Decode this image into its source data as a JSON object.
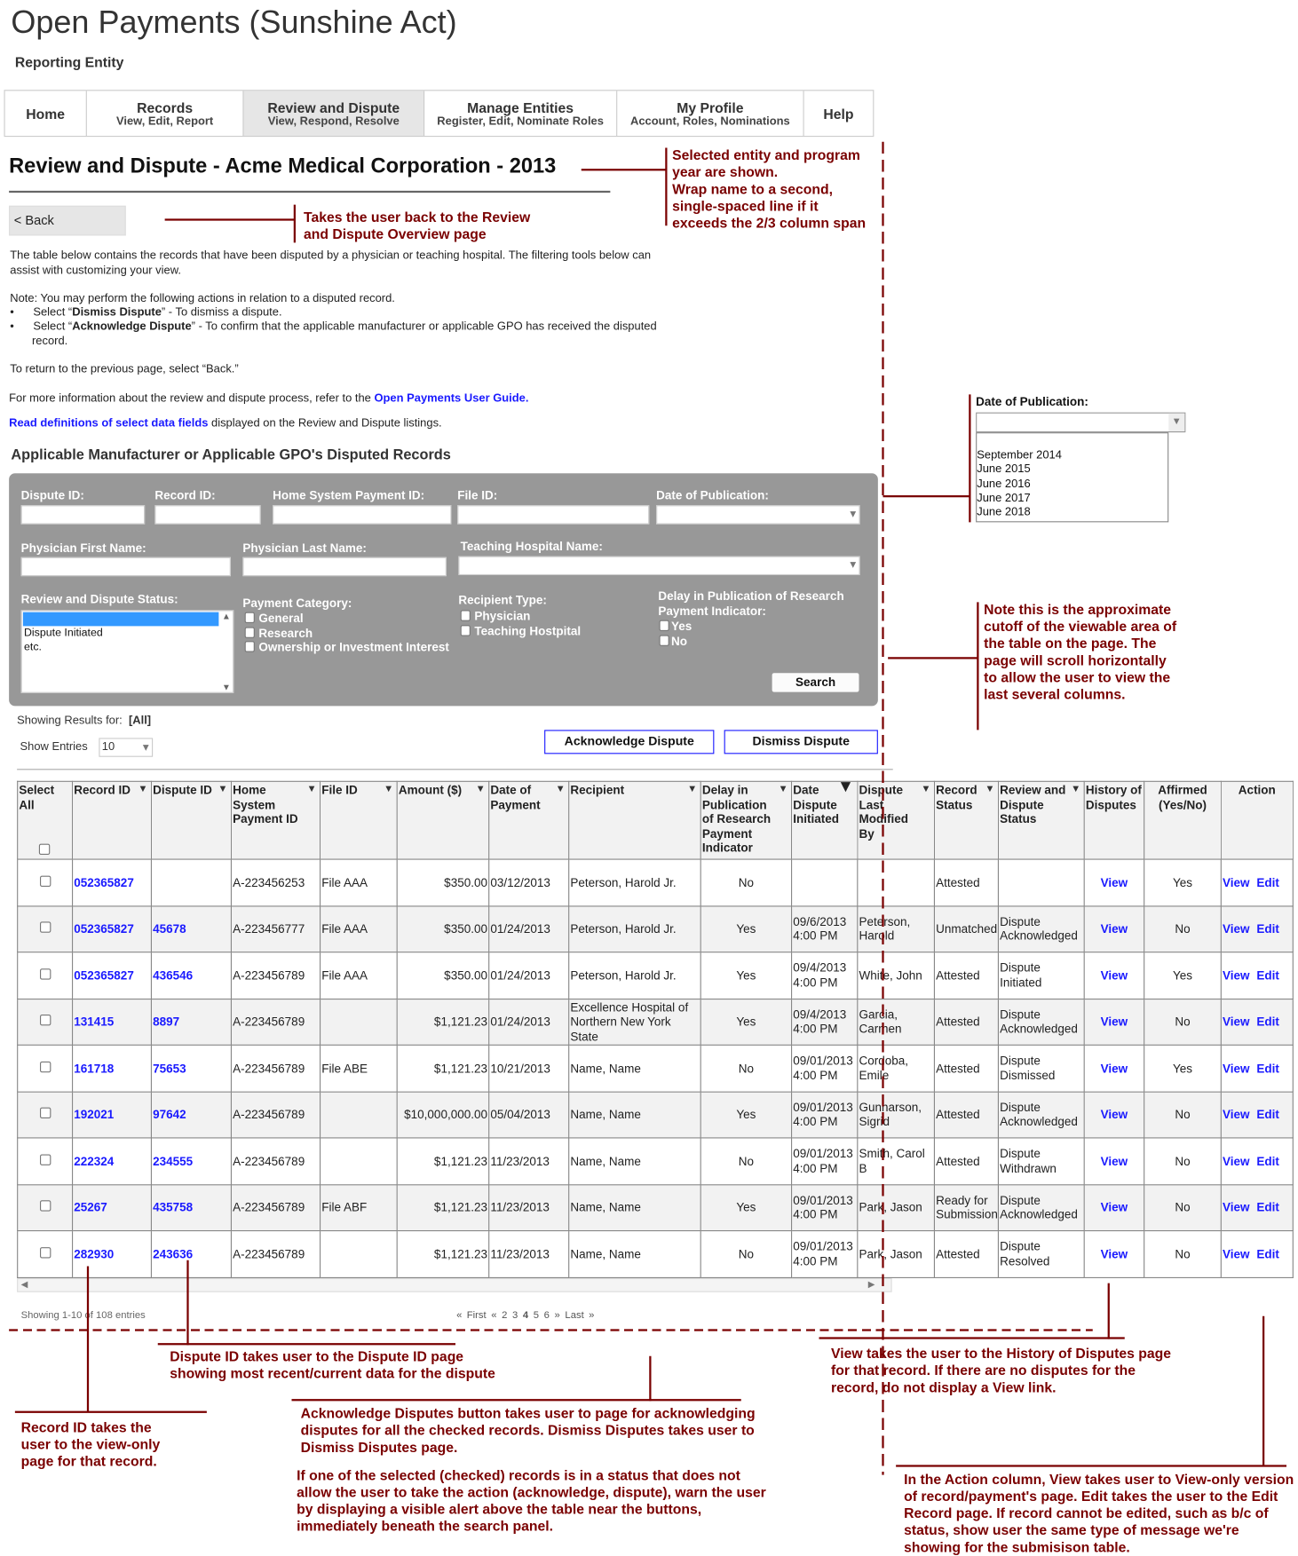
{
  "header": {
    "app_title": "Open Payments (Sunshine Act)",
    "subtitle": "Reporting Entity"
  },
  "nav": [
    {
      "label": "Home",
      "sub": ""
    },
    {
      "label": "Records",
      "sub": "View, Edit, Report"
    },
    {
      "label": "Review and Dispute",
      "sub": "View, Respond, Resolve",
      "active": true
    },
    {
      "label": "Manage Entities",
      "sub": "Register, Edit, Nominate Roles"
    },
    {
      "label": "My Profile",
      "sub": "Account, Roles, Nominations"
    },
    {
      "label": "Help",
      "sub": ""
    }
  ],
  "page": {
    "title": "Review and Dispute - Acme Medical Corporation - 2013",
    "back_label": "<  Back",
    "intro": "The table below contains the records that have been disputed by a physician or teaching hospital. The filtering tools below can assist with customizing your view.",
    "note": "Note: You may perform the following actions in relation to a disputed record.",
    "bullet1_pre": "Select “",
    "bullet1_bold": "Dismiss Dispute",
    "bullet1_post": "” -  To dismiss a dispute.",
    "bullet2_pre": "Select “",
    "bullet2_bold": "Acknowledge Dispute",
    "bullet2_post": "”  - To confirm that the applicable manufacturer or applicable GPO has received the disputed record.",
    "return_text": "To return to the previous page, select “Back.”",
    "more_info_pre": "For more information about the review and dispute process, refer to the ",
    "more_info_link": "Open Payments User Guide.",
    "definitions_link": "Read definitions of select data fields",
    "definitions_post": " displayed on the Review and Dispute listings.",
    "section_title": "Applicable Manufacturer or Applicable GPO's Disputed Records"
  },
  "filters": {
    "dispute_id": "Dispute ID:",
    "record_id": "Record ID:",
    "home_system_payment_id": "Home System Payment ID:",
    "file_id": "File ID:",
    "date_of_publication": "Date of Publication:",
    "physician_first_name": "Physician First Name:",
    "physician_last_name": "Physician Last Name:",
    "teaching_hospital_name": "Teaching Hospital Name:",
    "review_status_label": "Review and Dispute Status:",
    "review_status_options": [
      "",
      "Dispute Initiated",
      "etc."
    ],
    "payment_category_label": "Payment Category:",
    "payment_categories": [
      "General",
      "Research",
      "Ownership or Investment Interest"
    ],
    "recipient_type_label": "Recipient Type:",
    "recipient_types": [
      "Physician",
      "Teaching Hostpital"
    ],
    "delay_label": "Delay in Publication of Research Payment Indicator:",
    "delay_options": [
      "Yes",
      "No"
    ],
    "search_label": "Search"
  },
  "results": {
    "showing_label": "Showing Results for:",
    "showing_value": "[All]",
    "show_entries_label": "Show Entries",
    "show_entries_value": "10",
    "acknowledge_label": "Acknowledge Dispute",
    "dismiss_label": "Dismiss Dispute"
  },
  "table": {
    "columns": [
      {
        "label": "Select All",
        "sort": ""
      },
      {
        "label": "Record ID",
        "sort": "small"
      },
      {
        "label": "Dispute ID",
        "sort": "small"
      },
      {
        "label": "Home System Payment ID",
        "sort": "small"
      },
      {
        "label": "File ID",
        "sort": "small"
      },
      {
        "label": "Amount  ($)",
        "sort": "small"
      },
      {
        "label": "Date of Payment",
        "sort": "small"
      },
      {
        "label": "Recipient",
        "sort": "small"
      },
      {
        "label": "Delay in Publication of Research Payment Indicator",
        "sort": "small"
      },
      {
        "label": "Date Dispute Initiated",
        "sort": "large"
      },
      {
        "label": "Dispute Last Modified By",
        "sort": "small"
      },
      {
        "label": "Record Status",
        "sort": "small"
      },
      {
        "label": "Review and Dispute Status",
        "sort": "small"
      },
      {
        "label": "History of Disputes",
        "sort": ""
      },
      {
        "label": "Affirmed (Yes/No)",
        "sort": ""
      },
      {
        "label": "Action",
        "sort": ""
      }
    ],
    "rows": [
      {
        "record_id": "052365827",
        "dispute_id": "",
        "home_id": "A-223456253",
        "file_id": "File AAA",
        "amount": "$350.00",
        "date_payment": "03/12/2013",
        "recipient": "Peterson, Harold Jr.",
        "delay": "No",
        "date_initiated": "",
        "modified_by": "",
        "record_status": "Attested",
        "dispute_status": "",
        "history": "View",
        "affirmed": "Yes",
        "view": "View",
        "edit": "Edit"
      },
      {
        "record_id": "052365827",
        "dispute_id": "45678",
        "home_id": "A-223456777",
        "file_id": "File AAA",
        "amount": "$350.00",
        "date_payment": "01/24/2013",
        "recipient": "Peterson, Harold Jr.",
        "delay": "Yes",
        "date_initiated": "09/6/2013\n4:00 PM",
        "modified_by": "Peterson, Harold",
        "record_status": "Unmatched",
        "dispute_status": "Dispute Acknowledged",
        "history": "View",
        "affirmed": "No",
        "view": "View",
        "edit": "Edit"
      },
      {
        "record_id": "052365827",
        "dispute_id": "436546",
        "home_id": "A-223456789",
        "file_id": "File AAA",
        "amount": "$350.00",
        "date_payment": "01/24/2013",
        "recipient": "Peterson, Harold Jr.",
        "delay": "Yes",
        "date_initiated": "09/4/2013\n4:00 PM",
        "modified_by": "White, John",
        "record_status": "Attested",
        "dispute_status": "Dispute Initiated",
        "history": "View",
        "affirmed": "Yes",
        "view": "View",
        "edit": "Edit"
      },
      {
        "record_id": "131415",
        "dispute_id": "8897",
        "home_id": "A-223456789",
        "file_id": "",
        "amount": "$1,121.23",
        "date_payment": "01/24/2013",
        "recipient": "Excellence Hospital of Northern New York State",
        "delay": "Yes",
        "date_initiated": "09/4/2013\n4:00 PM",
        "modified_by": "Garcia, Carmen",
        "record_status": "Attested",
        "dispute_status": "Dispute Acknowledged",
        "history": "View",
        "affirmed": "No",
        "view": "View",
        "edit": "Edit"
      },
      {
        "record_id": "161718",
        "dispute_id": "75653",
        "home_id": "A-223456789",
        "file_id": "File ABE",
        "amount": "$1,121.23",
        "date_payment": "10/21/2013",
        "recipient": "Name, Name",
        "delay": "No",
        "date_initiated": "09/01/2013\n4:00 PM",
        "modified_by": "Cordoba, Emile",
        "record_status": "Attested",
        "dispute_status": "Dispute Dismissed",
        "history": "View",
        "affirmed": "Yes",
        "view": "View",
        "edit": "Edit"
      },
      {
        "record_id": "192021",
        "dispute_id": "97642",
        "home_id": "A-223456789",
        "file_id": "",
        "amount": "$10,000,000.00",
        "date_payment": "05/04/2013",
        "recipient": "Name, Name",
        "delay": "Yes",
        "date_initiated": "09/01/2013\n4:00 PM",
        "modified_by": "Gunnarson, Sigrid",
        "record_status": "Attested",
        "dispute_status": "Dispute Acknowledged",
        "history": "View",
        "affirmed": "No",
        "view": "View",
        "edit": "Edit"
      },
      {
        "record_id": "222324",
        "dispute_id": "234555",
        "home_id": "A-223456789",
        "file_id": "",
        "amount": "$1,121.23",
        "date_payment": "11/23/2013",
        "recipient": "Name, Name",
        "delay": "No",
        "date_initiated": "09/01/2013\n4:00 PM",
        "modified_by": "Smith, Carol B",
        "record_status": "Attested",
        "dispute_status": "Dispute Withdrawn",
        "history": "View",
        "affirmed": "No",
        "view": "View",
        "edit": "Edit"
      },
      {
        "record_id": "25267",
        "dispute_id": "435758",
        "home_id": "A-223456789",
        "file_id": "File ABF",
        "amount": "$1,121.23",
        "date_payment": "11/23/2013",
        "recipient": "Name, Name",
        "delay": "Yes",
        "date_initiated": "09/01/2013\n4:00 PM",
        "modified_by": "Park, Jason",
        "record_status": "Ready for Submission",
        "dispute_status": "Dispute Acknowledged",
        "history": "View",
        "affirmed": "No",
        "view": "View",
        "edit": "Edit"
      },
      {
        "record_id": "282930",
        "dispute_id": "243636",
        "home_id": "A-223456789",
        "file_id": "",
        "amount": "$1,121.23",
        "date_payment": "11/23/2013",
        "recipient": "Name, Name",
        "delay": "No",
        "date_initiated": "09/01/2013\n4:00 PM",
        "modified_by": "Park, Jason",
        "record_status": "Attested",
        "dispute_status": "Dispute Resolved",
        "history": "View",
        "affirmed": "No",
        "view": "View",
        "edit": "Edit"
      }
    ],
    "showing_entries": "Showing 1-10 of 108 entries",
    "pager": [
      "« First",
      "«",
      "2",
      "3",
      "4",
      "5",
      "6",
      "»",
      "Last »"
    ]
  },
  "callout_date_publication": {
    "label": "Date of Publication:",
    "options": [
      "",
      "September 2014",
      "June 2015",
      "June 2016",
      "June 2017",
      "June 2018"
    ]
  },
  "annotations": {
    "title_note": "Selected entity and program year are shown.\nWrap name to a second, single-spaced line if it exceeds the 2/3 column span",
    "back_note": "Takes the user back to the Review\nand Dispute Overview page",
    "cutoff_note": "Note this is the approximate cutoff of the viewable area of the table on the page. The page will scroll horizontally to allow the user to view the last several columns.",
    "record_id_note": "Record ID takes the user to the view-only page for that record.",
    "dispute_id_note": "Dispute ID takes user to the Dispute ID page showing most recent/current data for the dispute",
    "ack_note": "Acknowledge Disputes button takes user to page for acknowledging disputes  for all the checked records. Dismiss Disputes takes user to Dismiss Disputes page.",
    "warning_note": "If one of the selected (checked) records is in a status that does not allow the user to take the action (acknowledge, dispute), warn the user by displaying a visible alert above the table near the buttons, immediately beneath the search panel.",
    "history_note": "View takes the user to the History of Disputes page for that record. If there are no disputes for the record, do not display a View link.",
    "action_note": "In the Action column, View takes user to View-only version of record/payment's page. Edit takes the user to the Edit Record page. If record cannot be edited, such as b/c of status, show user the same type of message we're showing for the submisison table."
  },
  "colors": {
    "annotation": "#7a0000",
    "link": "#1a1aff",
    "panel": "#989898",
    "active_nav": "#e6e6e6"
  }
}
